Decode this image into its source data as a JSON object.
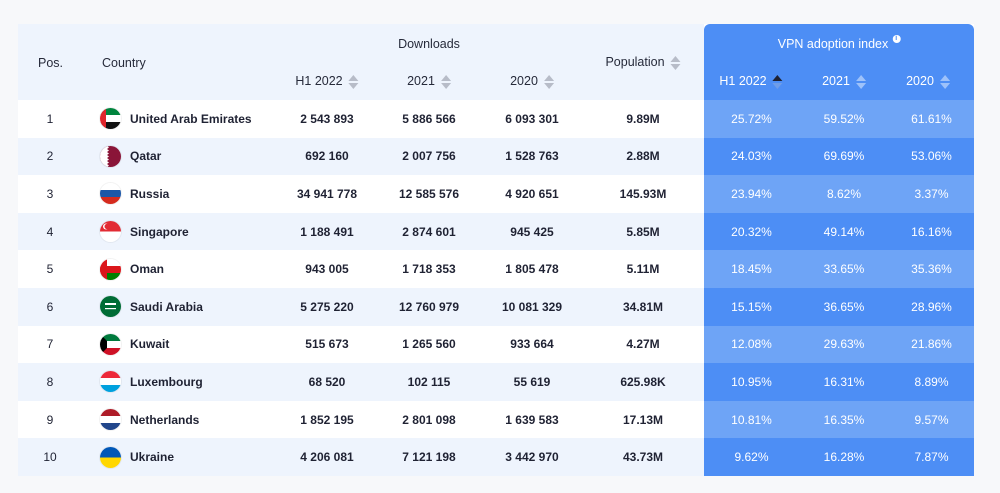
{
  "header": {
    "pos": "Pos.",
    "country": "Country",
    "downloads": "Downloads",
    "dl_h1_2022": "H1 2022",
    "dl_2021": "2021",
    "dl_2020": "2020",
    "population": "Population",
    "vpn_title": "VPN adoption index",
    "vpn_h1_2022": "H1 2022",
    "vpn_2021": "2021",
    "vpn_2020": "2020"
  },
  "colors": {
    "vpn_blue": "#4d8ef5",
    "vpn_light_blue": "#6ea4f6",
    "row_alt": "#eef4fd"
  },
  "rows": [
    {
      "pos": "1",
      "country": "United Arab Emirates",
      "flag": "uae-flag-icon",
      "dl_h1_2022": "2 543 893",
      "dl_2021": "5 886 566",
      "dl_2020": "6 093 301",
      "population": "9.89M",
      "vpn_h1_2022": "25.72%",
      "vpn_2021": "59.52%",
      "vpn_2020": "61.61%"
    },
    {
      "pos": "2",
      "country": "Qatar",
      "flag": "qatar-flag-icon",
      "dl_h1_2022": "692 160",
      "dl_2021": "2 007 756",
      "dl_2020": "1 528 763",
      "population": "2.88M",
      "vpn_h1_2022": "24.03%",
      "vpn_2021": "69.69%",
      "vpn_2020": "53.06%"
    },
    {
      "pos": "3",
      "country": "Russia",
      "flag": "russia-flag-icon",
      "dl_h1_2022": "34 941 778",
      "dl_2021": "12 585 576",
      "dl_2020": "4 920 651",
      "population": "145.93M",
      "vpn_h1_2022": "23.94%",
      "vpn_2021": "8.62%",
      "vpn_2020": "3.37%"
    },
    {
      "pos": "4",
      "country": "Singapore",
      "flag": "singapore-flag-icon",
      "dl_h1_2022": "1 188 491",
      "dl_2021": "2 874 601",
      "dl_2020": "945 425",
      "population": "5.85M",
      "vpn_h1_2022": "20.32%",
      "vpn_2021": "49.14%",
      "vpn_2020": "16.16%"
    },
    {
      "pos": "5",
      "country": "Oman",
      "flag": "oman-flag-icon",
      "dl_h1_2022": "943 005",
      "dl_2021": "1 718 353",
      "dl_2020": "1 805 478",
      "population": "5.11M",
      "vpn_h1_2022": "18.45%",
      "vpn_2021": "33.65%",
      "vpn_2020": "35.36%"
    },
    {
      "pos": "6",
      "country": "Saudi Arabia",
      "flag": "saudi-arabia-flag-icon",
      "dl_h1_2022": "5 275 220",
      "dl_2021": "12 760 979",
      "dl_2020": "10 081 329",
      "population": "34.81M",
      "vpn_h1_2022": "15.15%",
      "vpn_2021": "36.65%",
      "vpn_2020": "28.96%"
    },
    {
      "pos": "7",
      "country": "Kuwait",
      "flag": "kuwait-flag-icon",
      "dl_h1_2022": "515 673",
      "dl_2021": "1 265 560",
      "dl_2020": "933 664",
      "population": "4.27M",
      "vpn_h1_2022": "12.08%",
      "vpn_2021": "29.63%",
      "vpn_2020": "21.86%"
    },
    {
      "pos": "8",
      "country": "Luxembourg",
      "flag": "luxembourg-flag-icon",
      "dl_h1_2022": "68 520",
      "dl_2021": "102 115",
      "dl_2020": "55 619",
      "population": "625.98K",
      "vpn_h1_2022": "10.95%",
      "vpn_2021": "16.31%",
      "vpn_2020": "8.89%"
    },
    {
      "pos": "9",
      "country": "Netherlands",
      "flag": "netherlands-flag-icon",
      "dl_h1_2022": "1 852 195",
      "dl_2021": "2 801 098",
      "dl_2020": "1 639 583",
      "population": "17.13M",
      "vpn_h1_2022": "10.81%",
      "vpn_2021": "16.35%",
      "vpn_2020": "9.57%"
    },
    {
      "pos": "10",
      "country": "Ukraine",
      "flag": "ukraine-flag-icon",
      "dl_h1_2022": "4 206 081",
      "dl_2021": "7 121 198",
      "dl_2020": "3 442 970",
      "population": "43.73M",
      "vpn_h1_2022": "9.62%",
      "vpn_2021": "16.28%",
      "vpn_2020": "7.87%"
    }
  ]
}
